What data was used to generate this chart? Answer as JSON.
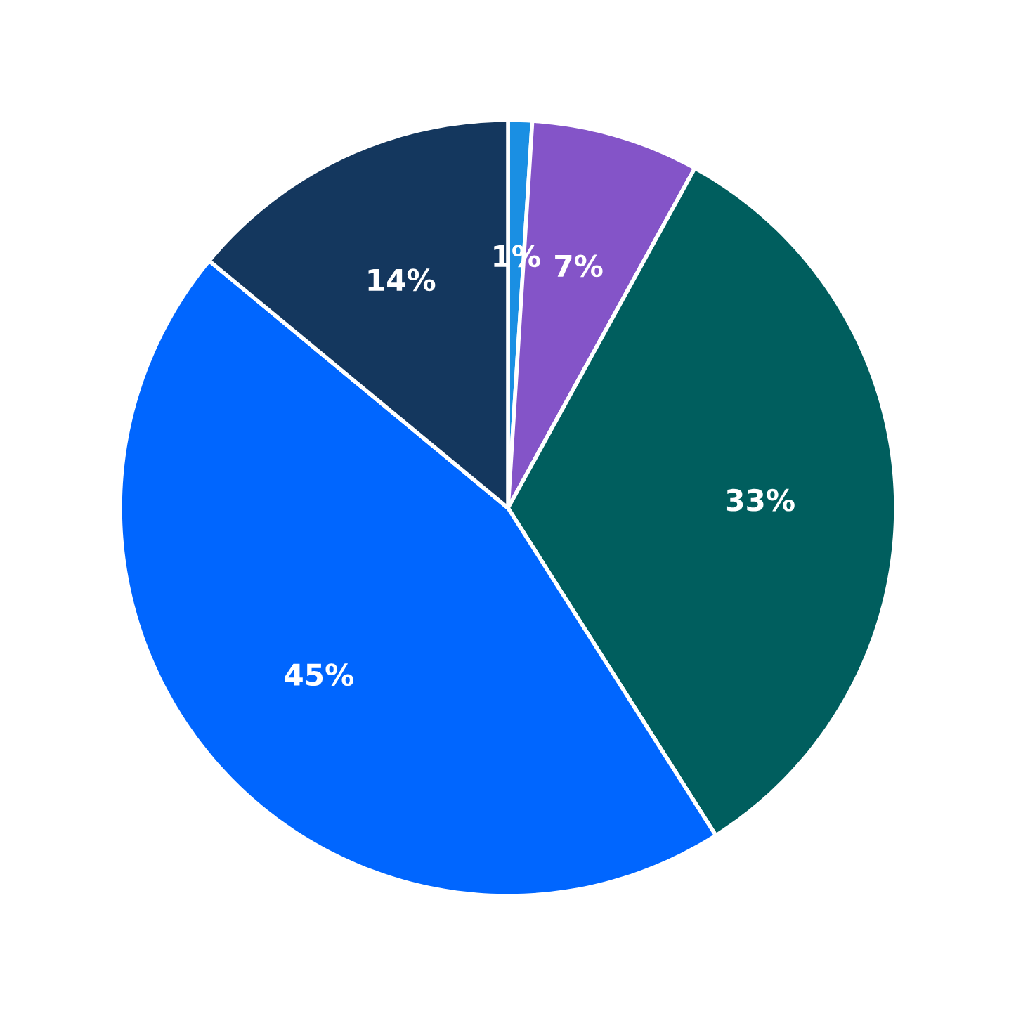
{
  "chart_data": {
    "type": "pie",
    "categories": [
      null,
      null,
      null,
      null,
      null
    ],
    "values": [
      1,
      7,
      33,
      45,
      14
    ],
    "colors": [
      "#1a8fe3",
      "#8454c8",
      "#005e5e",
      "#0066ff",
      "#14375e"
    ],
    "value_labels": [
      "1%",
      "7%",
      "33%",
      "45%",
      "14%"
    ]
  }
}
